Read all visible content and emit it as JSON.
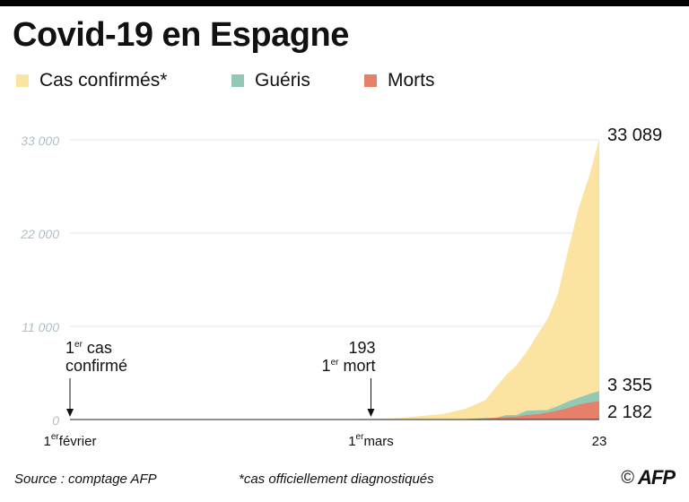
{
  "header": {
    "title": "Covid-19 en Espagne"
  },
  "legend": [
    {
      "label": "Cas confirmés*",
      "color": "#fbe3a1"
    },
    {
      "label": "Guéris",
      "color": "#92c9b5"
    },
    {
      "label": "Morts",
      "color": "#e5816a"
    }
  ],
  "chart_data": {
    "type": "area",
    "title": "Covid-19 en Espagne",
    "ylim": [
      0,
      33000
    ],
    "yticks": [
      {
        "value": 33000,
        "label": "33 000"
      },
      {
        "value": 22000,
        "label": "22 000"
      },
      {
        "value": 11000,
        "label": "11 000"
      },
      {
        "value": 0,
        "label": "0"
      }
    ],
    "grid": true,
    "x_start_day": 0,
    "x_end_day": 51,
    "xticks": [
      {
        "day": 0,
        "sup": "er",
        "text": "février",
        "pre": "1"
      },
      {
        "day": 29,
        "sup": "er",
        "text": "mars",
        "pre": "1"
      },
      {
        "day": 51,
        "sup": "",
        "text": "",
        "pre": "23"
      }
    ],
    "series": [
      {
        "name": "Cas confirmés*",
        "color": "#fbe3a1",
        "points": [
          [
            0,
            1
          ],
          [
            24,
            2
          ],
          [
            29,
            84
          ],
          [
            32,
            200
          ],
          [
            34,
            430
          ],
          [
            36,
            674
          ],
          [
            38,
            1231
          ],
          [
            40,
            2277
          ],
          [
            42,
            5232
          ],
          [
            43,
            6391
          ],
          [
            44,
            7988
          ],
          [
            45,
            9942
          ],
          [
            46,
            11826
          ],
          [
            47,
            14769
          ],
          [
            48,
            19980
          ],
          [
            49,
            24926
          ],
          [
            50,
            28603
          ],
          [
            51,
            33089
          ]
        ]
      },
      {
        "name": "Guéris",
        "color": "#92c9b5",
        "points": [
          [
            0,
            0
          ],
          [
            36,
            5
          ],
          [
            38,
            30
          ],
          [
            40,
            183
          ],
          [
            41,
            193
          ],
          [
            42,
            517
          ],
          [
            43,
            530
          ],
          [
            44,
            1028
          ],
          [
            45,
            1081
          ],
          [
            46,
            1107
          ],
          [
            47,
            1588
          ],
          [
            48,
            2125
          ],
          [
            49,
            2575
          ],
          [
            50,
            3000
          ],
          [
            51,
            3355
          ]
        ]
      },
      {
        "name": "Morts",
        "color": "#e5816a",
        "points": [
          [
            0,
            0
          ],
          [
            32,
            1
          ],
          [
            36,
            17
          ],
          [
            38,
            55
          ],
          [
            40,
            136
          ],
          [
            42,
            288
          ],
          [
            43,
            342
          ],
          [
            44,
            533
          ],
          [
            45,
            623
          ],
          [
            46,
            830
          ],
          [
            47,
            1043
          ],
          [
            48,
            1375
          ],
          [
            49,
            1772
          ],
          [
            50,
            2000
          ],
          [
            51,
            2182
          ]
        ]
      }
    ],
    "end_labels": [
      {
        "series": "Cas confirmés*",
        "value": 33089,
        "label": "33 089"
      },
      {
        "series": "Guéris",
        "value": 3355,
        "label": "3 355"
      },
      {
        "series": "Morts",
        "value": 2182,
        "label": "2 182"
      }
    ],
    "annotations": [
      {
        "day": 0,
        "align": "left",
        "lines": [
          {
            "pre": "1",
            "sup": "er",
            "post": " cas"
          },
          {
            "pre": "confirmé",
            "sup": "",
            "post": ""
          }
        ]
      },
      {
        "day": 29,
        "align": "right",
        "lines": [
          {
            "pre": "193",
            "sup": "",
            "post": ""
          },
          {
            "pre": "1",
            "sup": "er",
            "post": " mort"
          }
        ]
      }
    ]
  },
  "footer": {
    "source": "Source : comptage AFP",
    "note": "*cas officiellement diagnostiqués",
    "copyright": "©",
    "logo": "AFP"
  }
}
